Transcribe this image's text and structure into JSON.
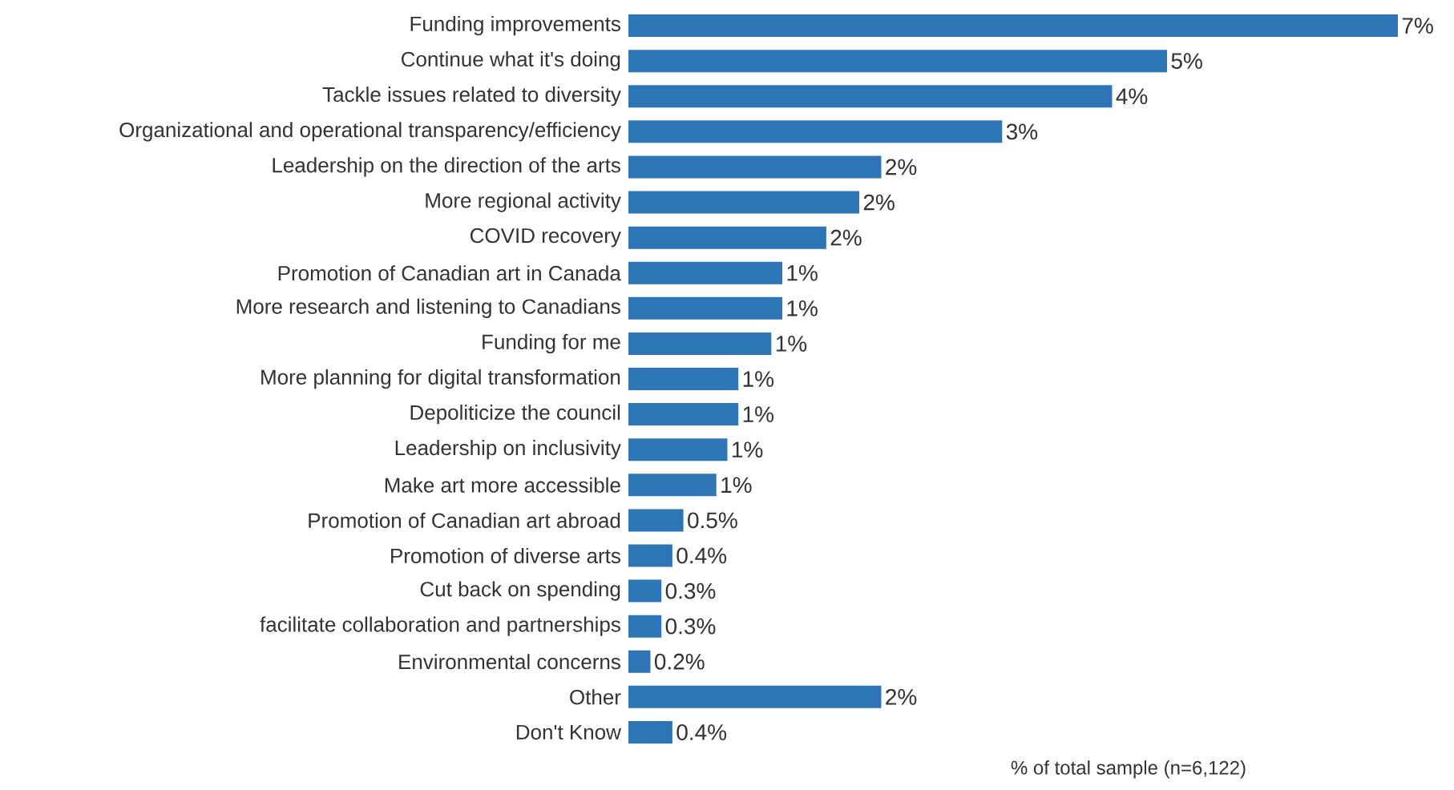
{
  "chart_data": {
    "type": "bar",
    "orientation": "horizontal",
    "xlabel": "% of total sample (n=6,122)",
    "categories": [
      "Funding improvements",
      "Continue what it's doing",
      "Tackle issues related to diversity",
      "Organizational and operational transparency/efficiency",
      "Leadership on the direction of the arts",
      "More regional activity",
      "COVID recovery",
      "Promotion of Canadian art in Canada",
      "More research and listening to Canadians",
      "Funding for me",
      "More planning for digital transformation",
      "Depoliticize the council",
      "Leadership on inclusivity",
      "Make art more accessible",
      "Promotion of Canadian art abroad",
      "Promotion of diverse arts",
      "Cut back on spending",
      "facilitate collaboration and partnerships",
      "Environmental concerns",
      "Other",
      "Don't Know"
    ],
    "values": [
      7.0,
      4.9,
      4.4,
      3.4,
      2.3,
      2.1,
      1.8,
      1.4,
      1.4,
      1.3,
      1.0,
      1.0,
      0.9,
      0.8,
      0.5,
      0.4,
      0.3,
      0.3,
      0.2,
      2.3,
      0.4
    ],
    "value_labels": [
      "7%",
      "5%",
      "4%",
      "3%",
      "2%",
      "2%",
      "2%",
      "1%",
      "1%",
      "1%",
      "1%",
      "1%",
      "1%",
      "1%",
      "0.5%",
      "0.4%",
      "0.3%",
      "0.3%",
      "0.2%",
      "2%",
      "0.4%"
    ],
    "color": "#2e75b6"
  }
}
